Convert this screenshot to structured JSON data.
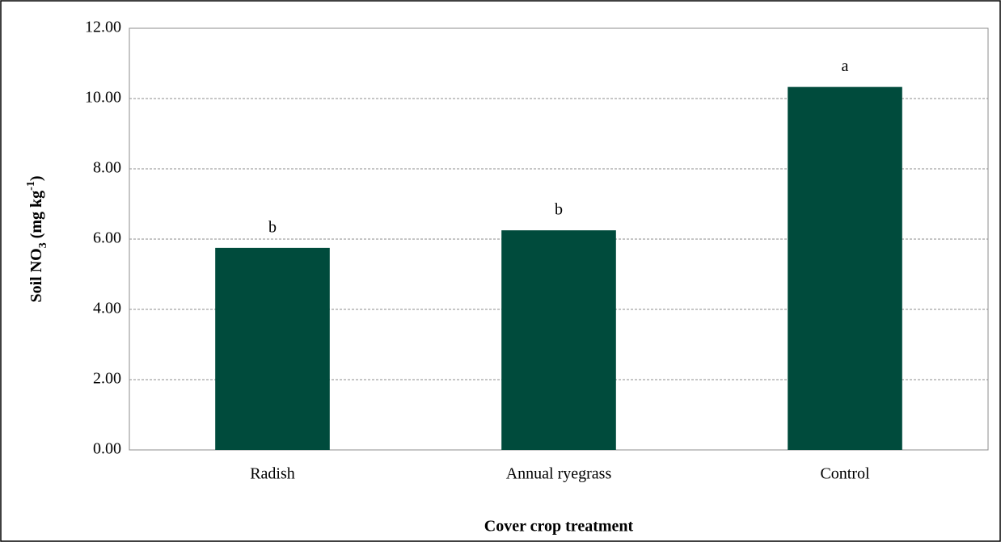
{
  "chart_data": {
    "type": "bar",
    "xlabel": "Cover crop treatment",
    "ylabel": [
      "Soil NO",
      "3",
      " (mg kg",
      "-1",
      ")"
    ],
    "ylabel_style": [
      "normal",
      "sub",
      "normal",
      "sup",
      "normal"
    ],
    "categories": [
      "Radish",
      "Annual ryegrass",
      "Control"
    ],
    "values": [
      5.75,
      6.25,
      10.33
    ],
    "annotations": [
      "b",
      "b",
      "a"
    ],
    "color": "#004b3c",
    "ylim": [
      0,
      12
    ],
    "yticks": [
      {
        "value": 0,
        "label": "0.00"
      },
      {
        "value": 2,
        "label": "2.00"
      },
      {
        "value": 4,
        "label": "4.00"
      },
      {
        "value": 6,
        "label": "6.00"
      },
      {
        "value": 8,
        "label": "8.00"
      },
      {
        "value": 10,
        "label": "10.00"
      },
      {
        "value": 12,
        "label": "12.00"
      }
    ],
    "grid": true
  }
}
